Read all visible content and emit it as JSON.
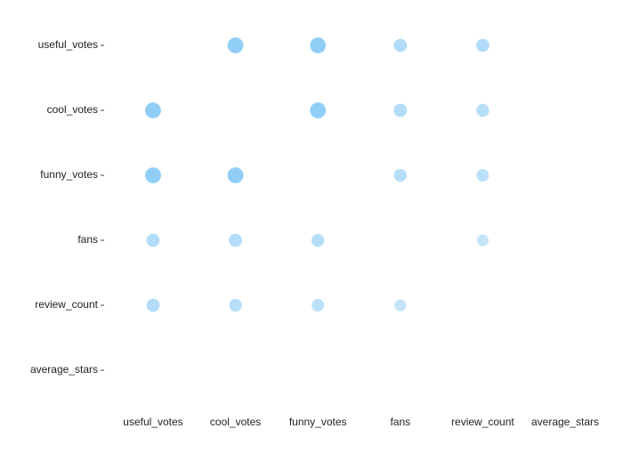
{
  "chart_data": {
    "type": "corrplot",
    "categories": [
      "useful_votes",
      "cool_votes",
      "funny_votes",
      "fans",
      "review_count",
      "average_stars"
    ],
    "values": [
      [
        null,
        0.98,
        0.98,
        0.6,
        0.6,
        null
      ],
      [
        0.98,
        null,
        0.98,
        0.6,
        0.55,
        null
      ],
      [
        0.98,
        0.98,
        null,
        0.55,
        0.5,
        null
      ],
      [
        0.6,
        0.6,
        0.55,
        null,
        0.4,
        null
      ],
      [
        0.6,
        0.55,
        0.5,
        0.4,
        null,
        null
      ],
      [
        null,
        null,
        null,
        null,
        null,
        null
      ]
    ],
    "color_low": "#e8f3fc",
    "color_high": "#8ecdf7"
  }
}
